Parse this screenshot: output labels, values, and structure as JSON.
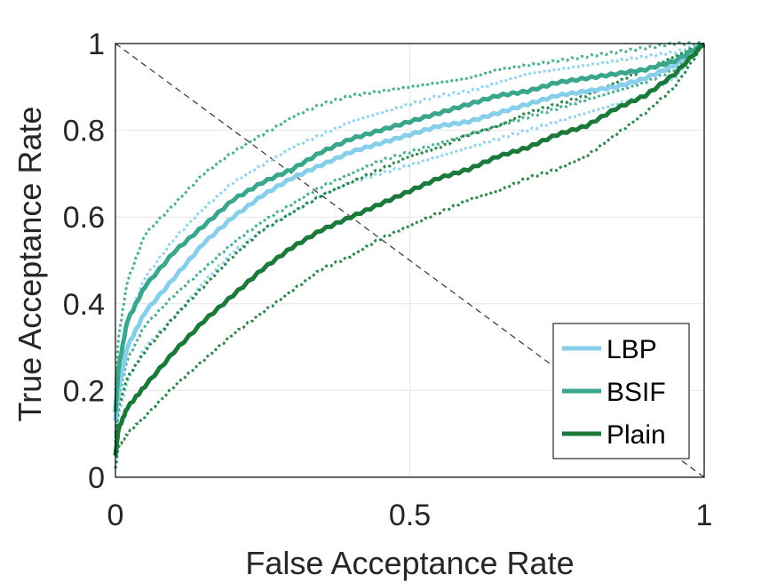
{
  "chart_data": {
    "type": "line",
    "xlabel": "False Acceptance Rate",
    "ylabel": "True Acceptance Rate",
    "xlim": [
      0,
      1
    ],
    "ylim": [
      0,
      1
    ],
    "xticks": [
      "0",
      "0.5",
      "1"
    ],
    "yticks": [
      "0",
      "0.2",
      "0.4",
      "0.6",
      "0.8",
      "1"
    ],
    "grid": true,
    "legend_position": "bottom-right",
    "reference_line": {
      "x": [
        0,
        1
      ],
      "y": [
        1,
        0
      ],
      "style": "dashed",
      "color": "#333333"
    },
    "series": [
      {
        "name": "LBP",
        "color": "#87CEEB",
        "x": [
          0,
          0.005,
          0.02,
          0.05,
          0.1,
          0.15,
          0.2,
          0.25,
          0.3,
          0.35,
          0.4,
          0.45,
          0.5,
          0.55,
          0.6,
          0.65,
          0.7,
          0.75,
          0.8,
          0.85,
          0.9,
          0.95,
          1
        ],
        "y": [
          0.13,
          0.2,
          0.3,
          0.38,
          0.46,
          0.54,
          0.6,
          0.65,
          0.69,
          0.72,
          0.75,
          0.77,
          0.79,
          0.81,
          0.82,
          0.84,
          0.86,
          0.88,
          0.89,
          0.9,
          0.92,
          0.95,
          1.0
        ],
        "band_upper": [
          0.17,
          0.25,
          0.36,
          0.46,
          0.55,
          0.62,
          0.68,
          0.72,
          0.76,
          0.79,
          0.82,
          0.84,
          0.86,
          0.88,
          0.89,
          0.91,
          0.93,
          0.94,
          0.95,
          0.96,
          0.97,
          0.98,
          1.0
        ],
        "band_lower": [
          0.09,
          0.14,
          0.22,
          0.3,
          0.37,
          0.45,
          0.52,
          0.57,
          0.61,
          0.65,
          0.68,
          0.7,
          0.72,
          0.74,
          0.76,
          0.78,
          0.8,
          0.82,
          0.84,
          0.86,
          0.88,
          0.92,
          1.0
        ]
      },
      {
        "name": "BSIF",
        "color": "#3AA68C",
        "x": [
          0,
          0.005,
          0.02,
          0.05,
          0.1,
          0.15,
          0.2,
          0.25,
          0.3,
          0.35,
          0.4,
          0.45,
          0.5,
          0.55,
          0.6,
          0.65,
          0.7,
          0.75,
          0.8,
          0.85,
          0.9,
          0.95,
          1
        ],
        "y": [
          0.15,
          0.25,
          0.36,
          0.44,
          0.52,
          0.58,
          0.64,
          0.68,
          0.71,
          0.75,
          0.78,
          0.8,
          0.82,
          0.84,
          0.86,
          0.88,
          0.89,
          0.91,
          0.92,
          0.93,
          0.94,
          0.96,
          1.0
        ],
        "band_upper": [
          0.2,
          0.32,
          0.45,
          0.56,
          0.63,
          0.7,
          0.75,
          0.79,
          0.83,
          0.86,
          0.88,
          0.89,
          0.9,
          0.91,
          0.92,
          0.94,
          0.95,
          0.96,
          0.97,
          0.98,
          0.99,
          1.0,
          1.0
        ],
        "band_lower": [
          0.1,
          0.18,
          0.27,
          0.35,
          0.42,
          0.48,
          0.54,
          0.59,
          0.63,
          0.67,
          0.7,
          0.73,
          0.75,
          0.77,
          0.79,
          0.81,
          0.83,
          0.85,
          0.87,
          0.89,
          0.91,
          0.94,
          1.0
        ]
      },
      {
        "name": "Plain",
        "color": "#1B7A3A",
        "x": [
          0,
          0.005,
          0.02,
          0.05,
          0.1,
          0.15,
          0.2,
          0.25,
          0.3,
          0.35,
          0.4,
          0.45,
          0.5,
          0.55,
          0.6,
          0.65,
          0.7,
          0.75,
          0.8,
          0.85,
          0.9,
          0.95,
          1
        ],
        "y": [
          0.05,
          0.11,
          0.16,
          0.21,
          0.29,
          0.36,
          0.42,
          0.48,
          0.53,
          0.57,
          0.6,
          0.63,
          0.66,
          0.69,
          0.71,
          0.74,
          0.76,
          0.79,
          0.81,
          0.85,
          0.88,
          0.93,
          1.0
        ],
        "band_upper": [
          0.08,
          0.16,
          0.23,
          0.29,
          0.37,
          0.44,
          0.51,
          0.57,
          0.61,
          0.65,
          0.68,
          0.71,
          0.74,
          0.76,
          0.79,
          0.81,
          0.84,
          0.86,
          0.88,
          0.91,
          0.94,
          0.97,
          1.0
        ],
        "band_lower": [
          0.02,
          0.07,
          0.1,
          0.14,
          0.21,
          0.27,
          0.33,
          0.38,
          0.43,
          0.48,
          0.51,
          0.55,
          0.58,
          0.61,
          0.64,
          0.66,
          0.69,
          0.71,
          0.74,
          0.79,
          0.84,
          0.9,
          1.0
        ]
      }
    ]
  }
}
